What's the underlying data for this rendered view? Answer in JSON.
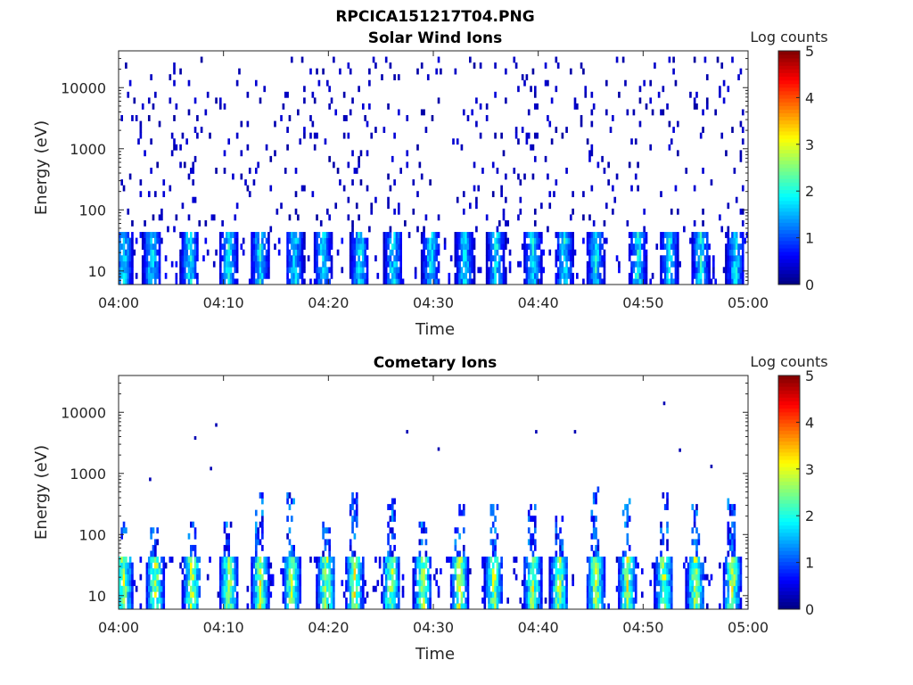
{
  "figure_title": "RPCICA151217T04.PNG",
  "colors": {
    "axis": "#262626",
    "background": "#ffffff",
    "colormap": "jet"
  },
  "chart_data": [
    {
      "type": "heatmap",
      "title": "Solar Wind Ions",
      "xlabel": "Time",
      "ylabel": "Energy (eV)",
      "x_tick_labels": [
        "04:00",
        "04:10",
        "04:20",
        "04:30",
        "04:40",
        "04:50",
        "05:00"
      ],
      "xlim": [
        "04:00",
        "05:00"
      ],
      "y_scale": "log",
      "y_tick_values": [
        10,
        100,
        1000,
        10000
      ],
      "y_tick_labels": [
        "10",
        "100",
        "1000",
        "10000"
      ],
      "ylim": [
        6,
        40000
      ],
      "colorbar": {
        "label": "Log counts",
        "range": [
          0,
          5
        ],
        "tick_labels": [
          "0",
          "1",
          "2",
          "3",
          "4",
          "5"
        ]
      },
      "grid": false,
      "burst_minutes": [
        0.5,
        3.2,
        6.8,
        10.5,
        13.5,
        16.8,
        19.5,
        23.0,
        26.2,
        29.8,
        33.0,
        36.0,
        39.5,
        42.5,
        45.5,
        49.5,
        52.5,
        55.5,
        58.8
      ],
      "burst_energy_range_eV": [
        6,
        40
      ],
      "burst_peak_log_counts": 2.0,
      "background_energy_range_eV": [
        40,
        30000
      ],
      "background_log_counts": 0.2
    },
    {
      "type": "heatmap",
      "title": "Cometary Ions",
      "xlabel": "Time",
      "ylabel": "Energy (eV)",
      "x_tick_labels": [
        "04:00",
        "04:10",
        "04:20",
        "04:30",
        "04:40",
        "04:50",
        "05:00"
      ],
      "xlim": [
        "04:00",
        "05:00"
      ],
      "y_scale": "log",
      "y_tick_values": [
        10,
        100,
        1000,
        10000
      ],
      "y_tick_labels": [
        "10",
        "100",
        "1000",
        "10000"
      ],
      "ylim": [
        6,
        40000
      ],
      "colorbar": {
        "label": "Log counts",
        "range": [
          0,
          5
        ],
        "tick_labels": [
          "0",
          "1",
          "2",
          "3",
          "4",
          "5"
        ]
      },
      "grid": false,
      "burst_minutes": [
        0.5,
        3.5,
        7.0,
        10.5,
        13.5,
        16.5,
        19.8,
        22.5,
        26.0,
        29.0,
        32.5,
        35.8,
        39.5,
        42.0,
        45.5,
        48.5,
        52.0,
        55.0,
        58.5
      ],
      "burst_energy_range_eV": [
        6,
        45
      ],
      "burst_peak_log_counts": 3.0,
      "burst_tail_max_eV": [
        150,
        150,
        150,
        150,
        500,
        500,
        150,
        500,
        400,
        150,
        300,
        350,
        350,
        200,
        600,
        400,
        500,
        400,
        500
      ],
      "sparse_high_energy_points": [
        {
          "min": 3.0,
          "eV": 800
        },
        {
          "min": 7.3,
          "eV": 3800
        },
        {
          "min": 8.8,
          "eV": 1200
        },
        {
          "min": 9.3,
          "eV": 6200
        },
        {
          "min": 27.5,
          "eV": 4800
        },
        {
          "min": 30.5,
          "eV": 2500
        },
        {
          "min": 39.8,
          "eV": 4800
        },
        {
          "min": 43.5,
          "eV": 4800
        },
        {
          "min": 52.0,
          "eV": 14000
        },
        {
          "min": 53.5,
          "eV": 2400
        },
        {
          "min": 56.5,
          "eV": 1300
        }
      ]
    }
  ]
}
